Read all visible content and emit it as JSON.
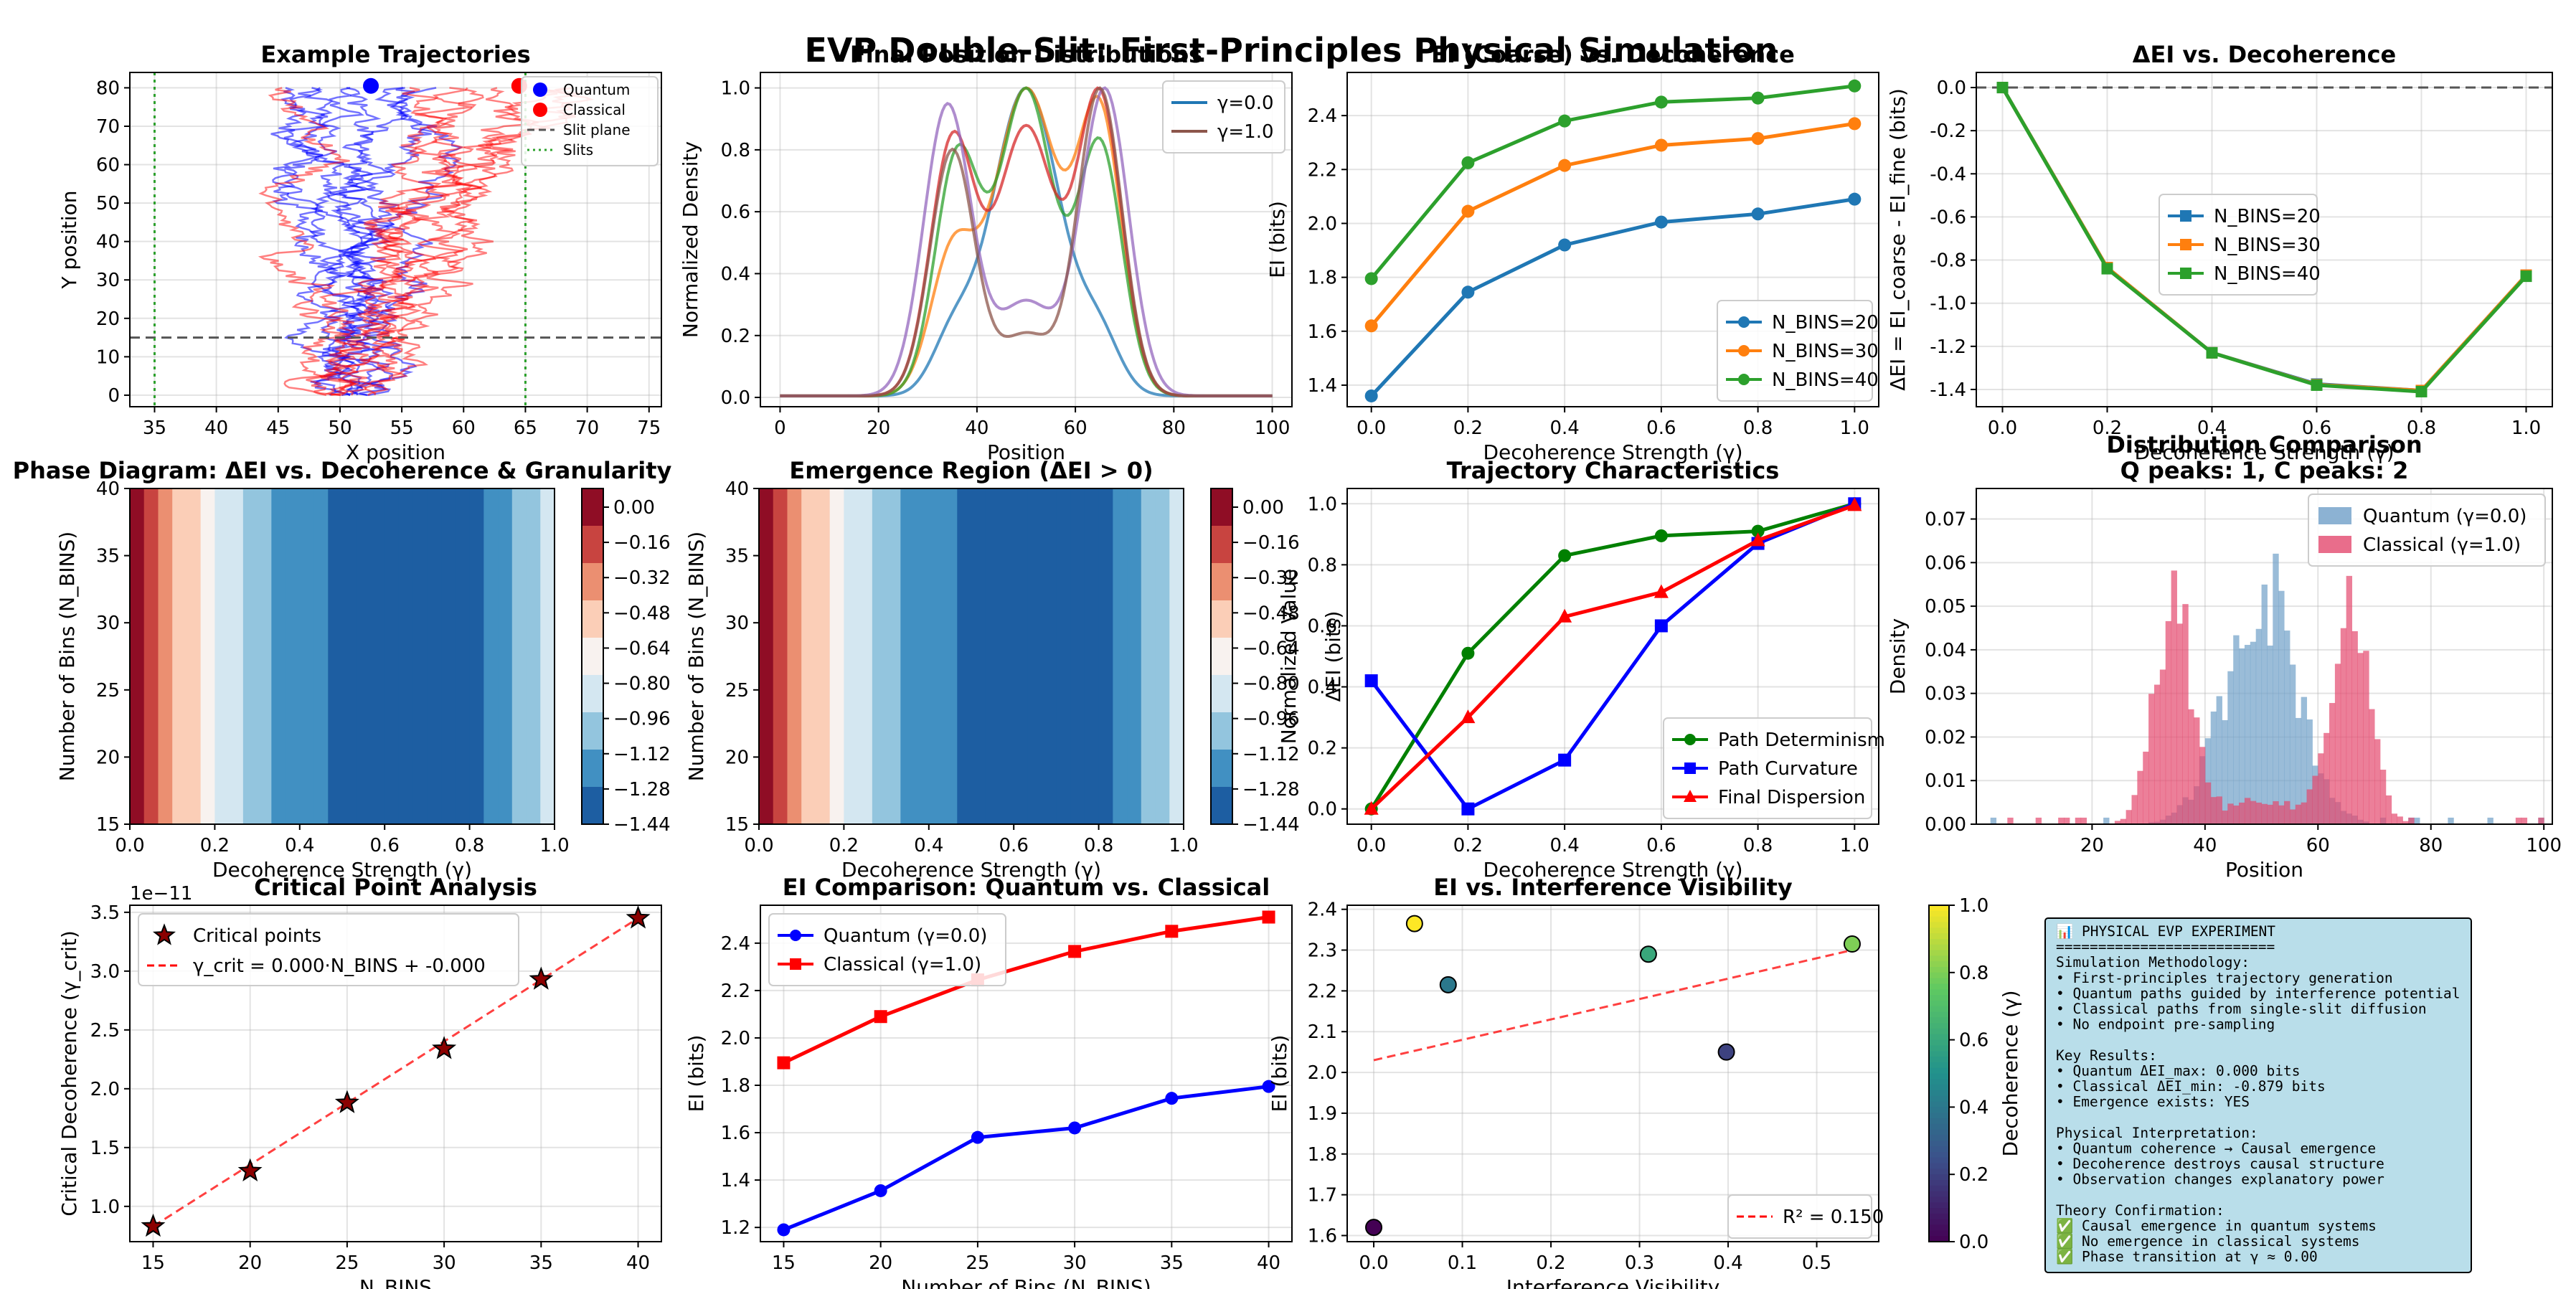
{
  "figure": {
    "suptitle": "EVP Double-Slit: First-Principles Physical Simulation"
  },
  "chart_data": [
    {
      "id": "traj",
      "type": "line",
      "title": "Example Trajectories",
      "xlabel": "X position",
      "ylabel": "Y position",
      "xlim": [
        33,
        76
      ],
      "ylim": [
        -3,
        84
      ],
      "xticks": [
        35,
        40,
        45,
        50,
        55,
        60,
        65,
        70,
        75
      ],
      "yticks": [
        0,
        10,
        20,
        30,
        40,
        50,
        60,
        70,
        80
      ],
      "slits_x": [
        35,
        65
      ],
      "slit_plane_y": 15,
      "quantum_color": "#0000ff",
      "classical_color": "#ff0000",
      "quantum_endpoint": [
        52.5,
        80.5
      ],
      "classical_endpoint": [
        64.5,
        80.5
      ],
      "legend": [
        "Quantum",
        "Classical",
        "Slit plane",
        "Slits"
      ],
      "legend_loc": "upper right",
      "grid": true
    },
    {
      "id": "dist",
      "type": "line",
      "title": "Final Position Distributions",
      "xlabel": "Position",
      "ylabel": "Normalized Density",
      "xlim": [
        -4,
        104
      ],
      "ylim": [
        -0.03,
        1.05
      ],
      "xticks": [
        0,
        20,
        40,
        60,
        80,
        100
      ],
      "yticks": [
        0.0,
        0.2,
        0.4,
        0.6,
        0.8,
        1.0
      ],
      "series": [
        {
          "name": "γ=0.0",
          "color": "#1f77b4",
          "components": [
            [
              50,
              7,
              1.0
            ],
            [
              35,
              4.2,
              0.17
            ],
            [
              65,
              4.2,
              0.17
            ]
          ]
        },
        {
          "color": "#ff7f0e",
          "components": [
            [
              50,
              6.5,
              1.0
            ],
            [
              35,
              4.5,
              0.45
            ],
            [
              65,
              4.5,
              0.9
            ]
          ]
        },
        {
          "color": "#2ca02c",
          "components": [
            [
              36,
              4.5,
              0.78
            ],
            [
              50,
              5.5,
              1.0
            ],
            [
              65,
              4.5,
              0.82
            ]
          ]
        },
        {
          "color": "#d62728",
          "components": [
            [
              35,
              4.5,
              0.75
            ],
            [
              50,
              6,
              0.8
            ],
            [
              65,
              4.5,
              0.88
            ]
          ]
        },
        {
          "color": "#9467bd",
          "components": [
            [
              34,
              4.8,
              0.93
            ],
            [
              50,
              6,
              0.3
            ],
            [
              66,
              4.8,
              0.98
            ]
          ]
        },
        {
          "name": "γ=1.0",
          "color": "#8c564b",
          "components": [
            [
              35,
              4.5,
              0.8
            ],
            [
              50,
              5.5,
              0.2
            ],
            [
              65,
              4.5,
              1.0
            ]
          ]
        }
      ],
      "legend_loc": "upper right",
      "grid": true
    },
    {
      "id": "ei",
      "type": "line",
      "title": "EI (Coarse) vs. Decoherence",
      "xlabel": "Decoherence Strength (γ)",
      "ylabel": "EI (bits)",
      "x": [
        0.0,
        0.2,
        0.4,
        0.6,
        0.8,
        1.0
      ],
      "xlim": [
        -0.05,
        1.05
      ],
      "ylim": [
        1.32,
        2.56
      ],
      "xticks": [
        0.0,
        0.2,
        0.4,
        0.6,
        0.8,
        1.0
      ],
      "yticks": [
        1.4,
        1.6,
        1.8,
        2.0,
        2.2,
        2.4
      ],
      "series": [
        {
          "name": "N_BINS=20",
          "color": "#1f77b4",
          "values": [
            1.36,
            1.745,
            1.92,
            2.005,
            2.035,
            2.09
          ]
        },
        {
          "name": "N_BINS=30",
          "color": "#ff7f0e",
          "values": [
            1.62,
            2.045,
            2.215,
            2.29,
            2.315,
            2.37
          ]
        },
        {
          "name": "N_BINS=40",
          "color": "#2ca02c",
          "values": [
            1.795,
            2.225,
            2.38,
            2.45,
            2.465,
            2.51
          ]
        }
      ],
      "legend_loc": "lower right",
      "grid": true
    },
    {
      "id": "dei",
      "type": "line",
      "title": "ΔEI vs. Decoherence",
      "xlabel": "Decoherence Strength (γ)",
      "ylabel": "ΔEI = EI_coarse - EI_fine (bits)",
      "x": [
        0.0,
        0.2,
        0.4,
        0.6,
        0.8,
        1.0
      ],
      "xlim": [
        -0.05,
        1.05
      ],
      "ylim": [
        -1.48,
        0.07
      ],
      "xticks": [
        0.0,
        0.2,
        0.4,
        0.6,
        0.8,
        1.0
      ],
      "yticks": [
        0.0,
        -0.2,
        -0.4,
        -0.6,
        -0.8,
        -1.0,
        -1.2,
        -1.4
      ],
      "series": [
        {
          "name": "N_BINS=20",
          "color": "#1f77b4",
          "values": [
            0.0,
            -0.835,
            -1.23,
            -1.375,
            -1.405,
            -0.87
          ]
        },
        {
          "name": "N_BINS=30",
          "color": "#ff7f0e",
          "values": [
            0.0,
            -0.835,
            -1.23,
            -1.378,
            -1.405,
            -0.87
          ]
        },
        {
          "name": "N_BINS=40",
          "color": "#2ca02c",
          "values": [
            0.0,
            -0.84,
            -1.23,
            -1.38,
            -1.41,
            -0.875
          ]
        }
      ],
      "legend_loc": "center",
      "grid": true
    },
    {
      "id": "phase",
      "type": "heatmap",
      "title": "Phase Diagram: ΔEI vs. Decoherence & Granularity",
      "xlabel": "Decoherence Strength (γ)",
      "ylabel": "Number of Bins (N_BINS)",
      "xlim": [
        0.0,
        1.0
      ],
      "ylim": [
        15,
        40
      ],
      "xticks": [
        0.0,
        0.2,
        0.4,
        0.6,
        0.8,
        1.0
      ],
      "yticks": [
        15,
        20,
        25,
        30,
        35,
        40
      ],
      "colorbar_ticks": [
        "0.00",
        "−0.16",
        "−0.32",
        "−0.48",
        "−0.64",
        "−0.80",
        "−0.96",
        "−1.12",
        "−1.28",
        "−1.44"
      ],
      "colorbar_label": ""
    },
    {
      "id": "emerg",
      "type": "heatmap",
      "title": "Emergence Region (ΔEI > 0)",
      "xlabel": "Decoherence Strength (γ)",
      "ylabel": "Number of Bins (N_BINS)",
      "xlim": [
        0.0,
        1.0
      ],
      "ylim": [
        15,
        40
      ],
      "xticks": [
        0.0,
        0.2,
        0.4,
        0.6,
        0.8,
        1.0
      ],
      "yticks": [
        15,
        20,
        25,
        30,
        35,
        40
      ],
      "colorbar_ticks": [
        "0.00",
        "−0.16",
        "−0.32",
        "−0.48",
        "−0.64",
        "−0.80",
        "−0.96",
        "−1.12",
        "−1.28",
        "−1.44"
      ],
      "colorbar_label": "ΔEI (bits)"
    },
    {
      "id": "traits",
      "type": "line",
      "title": "Trajectory Characteristics",
      "xlabel": "Decoherence Strength (γ)",
      "ylabel": "Normalized Value",
      "x": [
        0.0,
        0.2,
        0.4,
        0.6,
        0.8,
        1.0
      ],
      "xlim": [
        -0.05,
        1.05
      ],
      "ylim": [
        -0.05,
        1.05
      ],
      "xticks": [
        0.0,
        0.2,
        0.4,
        0.6,
        0.8,
        1.0
      ],
      "yticks": [
        0.0,
        0.2,
        0.4,
        0.6,
        0.8,
        1.0
      ],
      "series": [
        {
          "name": "Path Determinism",
          "color": "#008000",
          "marker": "circle",
          "values": [
            0.0,
            0.51,
            0.83,
            0.895,
            0.91,
            1.0
          ]
        },
        {
          "name": "Path Curvature",
          "color": "#0000ff",
          "marker": "square",
          "values": [
            0.42,
            0.0,
            0.16,
            0.6,
            0.87,
            1.0
          ]
        },
        {
          "name": "Final Dispersion",
          "color": "#ff0000",
          "marker": "triangle",
          "values": [
            0.0,
            0.3,
            0.63,
            0.71,
            0.88,
            0.995
          ]
        }
      ],
      "legend_loc": "lower right",
      "grid": true
    },
    {
      "id": "hist",
      "type": "bar",
      "title": "Distribution Comparison\nQ peaks: 1, C peaks: 2",
      "xlabel": "Position",
      "ylabel": "Density",
      "xlim": [
        -0.5,
        101.5
      ],
      "ylim": [
        0,
        0.077
      ],
      "xticks": [
        20,
        40,
        60,
        80,
        100
      ],
      "yticks": [
        0.0,
        0.01,
        0.02,
        0.03,
        0.04,
        0.05,
        0.06,
        0.07
      ],
      "series": [
        {
          "name": "Quantum (γ=0.0)",
          "color": "#6f9fc8",
          "components": [
            [
              50,
              6.2,
              0.055
            ]
          ]
        },
        {
          "name": "Classical (γ=1.0)",
          "color": "#e4486e",
          "components": [
            [
              34.5,
              3.4,
              0.05
            ],
            [
              65.5,
              3.4,
              0.05
            ],
            [
              50,
              5,
              0.006
            ]
          ]
        }
      ],
      "legend_loc": "upper right",
      "grid": true
    },
    {
      "id": "crit",
      "type": "scatter",
      "title": "Critical Point Analysis",
      "xlabel": "N_BINS",
      "ylabel": "Critical Decoherence (γ_crit)",
      "offset_label": "1e−11",
      "x": [
        15,
        20,
        25,
        30,
        35,
        40
      ],
      "values": [
        0.83,
        1.3,
        1.88,
        2.34,
        2.93,
        3.45
      ],
      "xlim": [
        13.8,
        41.2
      ],
      "ylim": [
        0.7,
        3.56
      ],
      "xticks": [
        15,
        20,
        25,
        30,
        35,
        40
      ],
      "yticks": [
        1.0,
        1.5,
        2.0,
        2.5,
        3.0,
        3.5
      ],
      "series": [
        {
          "name": "Critical points",
          "color": "#8b0000"
        },
        {
          "name": "γ_crit = 0.000·N_BINS + -0.000",
          "color": "#ff0000"
        }
      ],
      "legend_loc": "upper left",
      "grid": true
    },
    {
      "id": "cmp",
      "type": "line",
      "title": "EI Comparison: Quantum vs. Classical",
      "xlabel": "Number of Bins (N_BINS)",
      "ylabel": "EI (bits)",
      "x": [
        15,
        20,
        25,
        30,
        35,
        40
      ],
      "xlim": [
        13.8,
        41.2
      ],
      "ylim": [
        1.14,
        2.56
      ],
      "xticks": [
        15,
        20,
        25,
        30,
        35,
        40
      ],
      "yticks": [
        1.2,
        1.4,
        1.6,
        1.8,
        2.0,
        2.2,
        2.4
      ],
      "series": [
        {
          "name": "Quantum (γ=0.0)",
          "color": "#0000ff",
          "marker": "circle",
          "values": [
            1.19,
            1.355,
            1.58,
            1.62,
            1.745,
            1.795
          ]
        },
        {
          "name": "Classical (γ=1.0)",
          "color": "#ff0000",
          "marker": "square",
          "values": [
            1.895,
            2.09,
            2.245,
            2.365,
            2.45,
            2.51
          ]
        }
      ],
      "legend_loc": "upper left",
      "grid": true
    },
    {
      "id": "vis",
      "type": "scatter",
      "title": "EI vs. Interference Visibility",
      "xlabel": "Interference Visibility",
      "ylabel": "EI (bits)",
      "xlim": [
        -0.03,
        0.57
      ],
      "ylim": [
        1.585,
        2.41
      ],
      "xticks": [
        0.0,
        0.1,
        0.2,
        0.3,
        0.4,
        0.5
      ],
      "yticks": [
        1.6,
        1.7,
        1.8,
        1.9,
        2.0,
        2.1,
        2.2,
        2.3,
        2.4
      ],
      "points": [
        {
          "x": 0.0,
          "y": 1.62,
          "gamma": 0.0
        },
        {
          "x": 0.084,
          "y": 2.215,
          "gamma": 0.4
        },
        {
          "x": 0.046,
          "y": 2.365,
          "gamma": 1.0
        },
        {
          "x": 0.31,
          "y": 2.29,
          "gamma": 0.6
        },
        {
          "x": 0.398,
          "y": 2.05,
          "gamma": 0.2
        },
        {
          "x": 0.54,
          "y": 2.315,
          "gamma": 0.8
        }
      ],
      "fit": {
        "label": "R² = 0.150",
        "x": [
          0.0,
          0.54
        ],
        "y": [
          2.03,
          2.3
        ]
      },
      "colorbar_label": "Decoherence (γ)",
      "colorbar_ticks": [
        "0.0",
        "0.2",
        "0.4",
        "0.6",
        "0.8",
        "1.0"
      ],
      "grid": true
    }
  ],
  "summary": {
    "lines": [
      "📊 PHYSICAL EVP EXPERIMENT",
      "==========================",
      "Simulation Methodology:",
      "• First-principles trajectory generation",
      "• Quantum paths guided by interference potential",
      "• Classical paths from single-slit diffusion",
      "• No endpoint pre-sampling",
      "",
      "Key Results:",
      "• Quantum ΔEI_max: 0.000 bits",
      "• Classical ΔEI_min: -0.879 bits",
      "• Emergence exists: YES",
      "",
      "Physical Interpretation:",
      "• Quantum coherence → Causal emergence",
      "• Decoherence destroys causal structure",
      "• Observation changes explanatory power",
      "",
      "Theory Confirmation:",
      "✅ Causal emergence in quantum systems",
      "✅ No emergence in classical systems",
      "✅ Phase transition at γ ≈ 0.00"
    ]
  }
}
